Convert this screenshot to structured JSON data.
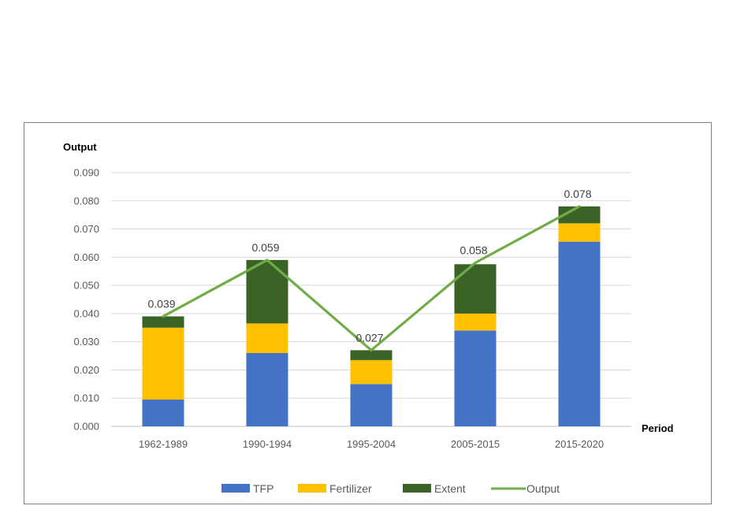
{
  "chart_data": {
    "type": "bar",
    "stacked": true,
    "categories": [
      "1962-1989",
      "1990-1994",
      "1995-2004",
      "2005-2015",
      "2015-2020"
    ],
    "series": [
      {
        "name": "TFP",
        "kind": "bar",
        "color": "#4472C4",
        "values": [
          0.0095,
          0.026,
          0.015,
          0.034,
          0.0655
        ]
      },
      {
        "name": "Fertilizer",
        "kind": "bar",
        "color": "#FFC000",
        "values": [
          0.0255,
          0.0105,
          0.0085,
          0.006,
          0.0065
        ]
      },
      {
        "name": "Extent",
        "kind": "bar",
        "color": "#3B6326",
        "values": [
          0.004,
          0.0225,
          0.0035,
          0.0175,
          0.006
        ]
      },
      {
        "name": "Output",
        "kind": "line",
        "color": "#70AD47",
        "values": [
          0.039,
          0.059,
          0.027,
          0.058,
          0.078
        ]
      }
    ],
    "data_labels": [
      "0.039",
      "0.059",
      "0.027",
      "0.058",
      "0.078"
    ],
    "y_ticks": [
      "0.000",
      "0.010",
      "0.020",
      "0.030",
      "0.040",
      "0.050",
      "0.060",
      "0.070",
      "0.080",
      "0.090"
    ],
    "ylim": [
      0,
      0.09
    ],
    "ylabel": "Output",
    "xlabel": "Period",
    "grid": true,
    "legend_position": "bottom"
  }
}
